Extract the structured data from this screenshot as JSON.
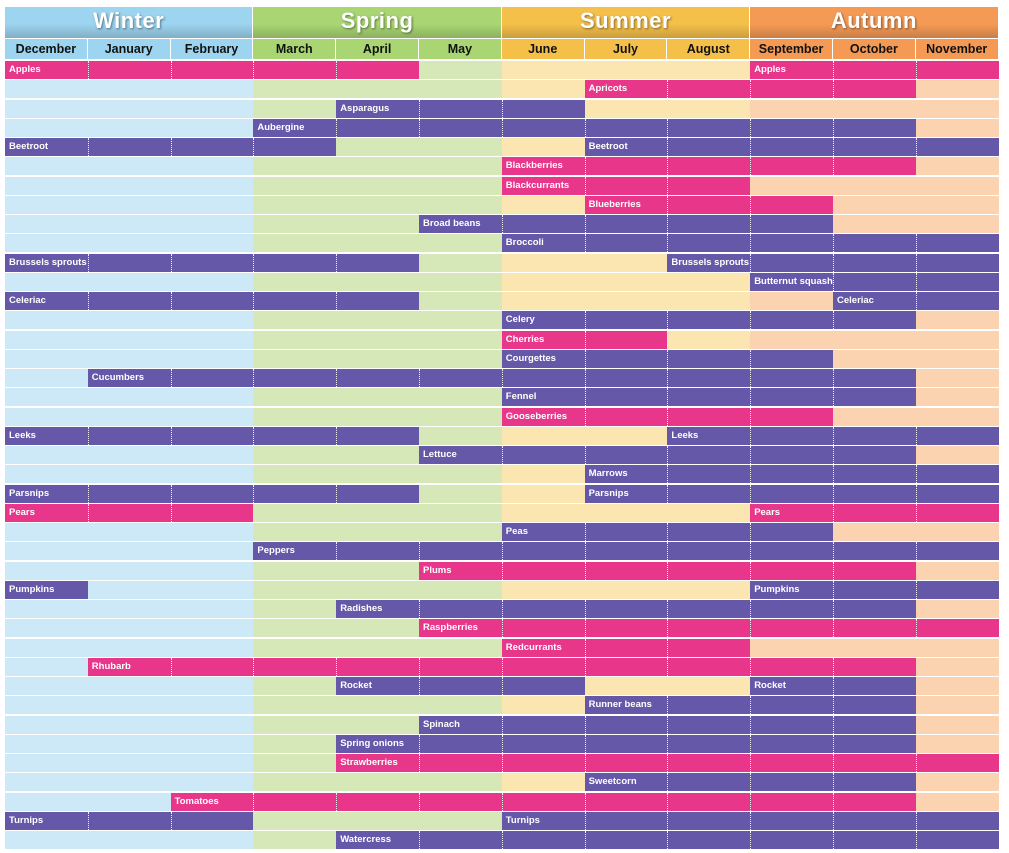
{
  "chart_data": {
    "type": "gantt",
    "seasons": [
      {
        "name": "Winter",
        "months": [
          0,
          2
        ]
      },
      {
        "name": "Spring",
        "months": [
          3,
          5
        ]
      },
      {
        "name": "Summer",
        "months": [
          6,
          8
        ]
      },
      {
        "name": "Autumn",
        "months": [
          9,
          11
        ]
      }
    ],
    "months": [
      "December",
      "January",
      "February",
      "March",
      "April",
      "May",
      "June",
      "July",
      "August",
      "September",
      "October",
      "November"
    ],
    "colors": {
      "fruit": "#e8368b",
      "vegetable": "#6558a8",
      "month_backgrounds": [
        "#cde8f7",
        "#cde8f7",
        "#cde8f7",
        "#d7e8b8",
        "#d7e8b8",
        "#d7e8b8",
        "#fbe5b0",
        "#fbe5b0",
        "#fbe5b0",
        "#fbd3b0",
        "#fbd3b0",
        "#fbd3b0"
      ],
      "season_headers": [
        "#9dd4f0",
        "#a9d673",
        "#f5c04a",
        "#f59a55"
      ]
    },
    "rows": [
      {
        "label": "Apples",
        "bars": [
          {
            "start": 0,
            "end": 4,
            "type": "fruit",
            "label": "Apples"
          },
          {
            "start": 9,
            "end": 11,
            "type": "fruit",
            "label": "Apples"
          }
        ]
      },
      {
        "label": "Apricots",
        "bars": [
          {
            "start": 7,
            "end": 10,
            "type": "fruit",
            "label": "Apricots"
          }
        ]
      },
      {
        "label": "Asparagus",
        "bars": [
          {
            "start": 4,
            "end": 6,
            "type": "vegetable",
            "label": "Asparagus"
          }
        ]
      },
      {
        "label": "Aubergine",
        "bars": [
          {
            "start": 3,
            "end": 10,
            "type": "vegetable",
            "label": "Aubergine"
          }
        ]
      },
      {
        "label": "Beetroot",
        "bars": [
          {
            "start": 0,
            "end": 3,
            "type": "vegetable",
            "label": "Beetroot"
          },
          {
            "start": 7,
            "end": 11,
            "type": "vegetable",
            "label": "Beetroot"
          }
        ]
      },
      {
        "label": "Blackberries",
        "bars": [
          {
            "start": 6,
            "end": 10,
            "type": "fruit",
            "label": "Blackberries"
          }
        ]
      },
      {
        "label": "Blackcurrants",
        "bars": [
          {
            "start": 6,
            "end": 8,
            "type": "fruit",
            "label": "Blackcurrants"
          }
        ]
      },
      {
        "label": "Blueberries",
        "bars": [
          {
            "start": 7,
            "end": 9,
            "type": "fruit",
            "label": "Blueberries"
          }
        ]
      },
      {
        "label": "Broad beans",
        "bars": [
          {
            "start": 5,
            "end": 9,
            "type": "vegetable",
            "label": "Broad beans"
          }
        ]
      },
      {
        "label": "Broccoli",
        "bars": [
          {
            "start": 6,
            "end": 11,
            "type": "vegetable",
            "label": "Broccoli"
          }
        ]
      },
      {
        "label": "Brussels sprouts",
        "bars": [
          {
            "start": 0,
            "end": 4,
            "type": "vegetable",
            "label": "Brussels sprouts"
          },
          {
            "start": 8,
            "end": 11,
            "type": "vegetable",
            "label": "Brussels sprouts"
          }
        ]
      },
      {
        "label": "Butternut squash",
        "bars": [
          {
            "start": 9,
            "end": 11,
            "type": "vegetable",
            "label": "Butternut squash"
          }
        ]
      },
      {
        "label": "Celeriac",
        "bars": [
          {
            "start": 0,
            "end": 4,
            "type": "vegetable",
            "label": "Celeriac"
          },
          {
            "start": 10,
            "end": 11,
            "type": "vegetable",
            "label": "Celeriac"
          }
        ]
      },
      {
        "label": "Celery",
        "bars": [
          {
            "start": 6,
            "end": 10,
            "type": "vegetable",
            "label": "Celery"
          }
        ]
      },
      {
        "label": "Cherries",
        "bars": [
          {
            "start": 6,
            "end": 7,
            "type": "fruit",
            "label": "Cherries"
          }
        ]
      },
      {
        "label": "Courgettes",
        "bars": [
          {
            "start": 6,
            "end": 9,
            "type": "vegetable",
            "label": "Courgettes"
          }
        ]
      },
      {
        "label": "Cucumbers",
        "bars": [
          {
            "start": 1,
            "end": 10,
            "type": "vegetable",
            "label": "Cucumbers"
          }
        ]
      },
      {
        "label": "Fennel",
        "bars": [
          {
            "start": 6,
            "end": 10,
            "type": "vegetable",
            "label": "Fennel"
          }
        ]
      },
      {
        "label": "Gooseberries",
        "bars": [
          {
            "start": 6,
            "end": 9,
            "type": "fruit",
            "label": "Gooseberries"
          }
        ]
      },
      {
        "label": "Leeks",
        "bars": [
          {
            "start": 0,
            "end": 4,
            "type": "vegetable",
            "label": "Leeks"
          },
          {
            "start": 8,
            "end": 11,
            "type": "vegetable",
            "label": "Leeks"
          }
        ]
      },
      {
        "label": "Lettuce",
        "bars": [
          {
            "start": 5,
            "end": 10,
            "type": "vegetable",
            "label": "Lettuce"
          }
        ]
      },
      {
        "label": "Marrows",
        "bars": [
          {
            "start": 7,
            "end": 11,
            "type": "vegetable",
            "label": "Marrows"
          }
        ]
      },
      {
        "label": "Parsnips",
        "bars": [
          {
            "start": 0,
            "end": 4,
            "type": "vegetable",
            "label": "Parsnips"
          },
          {
            "start": 7,
            "end": 11,
            "type": "vegetable",
            "label": "Parsnips"
          }
        ]
      },
      {
        "label": "Pears",
        "bars": [
          {
            "start": 0,
            "end": 2,
            "type": "fruit",
            "label": "Pears"
          },
          {
            "start": 9,
            "end": 11,
            "type": "fruit",
            "label": "Pears"
          }
        ]
      },
      {
        "label": "Peas",
        "bars": [
          {
            "start": 6,
            "end": 9,
            "type": "vegetable",
            "label": "Peas"
          }
        ]
      },
      {
        "label": "Peppers",
        "bars": [
          {
            "start": 3,
            "end": 11,
            "type": "vegetable",
            "label": "Peppers"
          }
        ]
      },
      {
        "label": "Plums",
        "bars": [
          {
            "start": 5,
            "end": 10,
            "type": "fruit",
            "label": "Plums"
          }
        ]
      },
      {
        "label": "Pumpkins",
        "bars": [
          {
            "start": 0,
            "end": 0,
            "type": "vegetable",
            "label": "Pumpkins"
          },
          {
            "start": 9,
            "end": 11,
            "type": "vegetable",
            "label": "Pumpkins"
          }
        ]
      },
      {
        "label": "Radishes",
        "bars": [
          {
            "start": 4,
            "end": 10,
            "type": "vegetable",
            "label": "Radishes"
          }
        ]
      },
      {
        "label": "Raspberries",
        "bars": [
          {
            "start": 5,
            "end": 11,
            "type": "fruit",
            "label": "Raspberries"
          }
        ]
      },
      {
        "label": "Redcurrants",
        "bars": [
          {
            "start": 6,
            "end": 8,
            "type": "fruit",
            "label": "Redcurrants"
          }
        ]
      },
      {
        "label": "Rhubarb",
        "bars": [
          {
            "start": 1,
            "end": 10,
            "type": "fruit",
            "label": "Rhubarb"
          }
        ]
      },
      {
        "label": "Rocket",
        "bars": [
          {
            "start": 4,
            "end": 6,
            "type": "vegetable",
            "label": "Rocket"
          },
          {
            "start": 9,
            "end": 10,
            "type": "vegetable",
            "label": "Rocket"
          }
        ]
      },
      {
        "label": "Runner beans",
        "bars": [
          {
            "start": 7,
            "end": 10,
            "type": "vegetable",
            "label": "Runner beans"
          }
        ]
      },
      {
        "label": "Spinach",
        "bars": [
          {
            "start": 5,
            "end": 10,
            "type": "vegetable",
            "label": "Spinach"
          }
        ]
      },
      {
        "label": "Spring onions",
        "bars": [
          {
            "start": 4,
            "end": 10,
            "type": "vegetable",
            "label": "Spring onions"
          }
        ]
      },
      {
        "label": "Strawberries",
        "bars": [
          {
            "start": 4,
            "end": 11,
            "type": "fruit",
            "label": "Strawberries"
          }
        ]
      },
      {
        "label": "Sweetcorn",
        "bars": [
          {
            "start": 7,
            "end": 10,
            "type": "vegetable",
            "label": "Sweetcorn"
          }
        ]
      },
      {
        "label": "Tomatoes",
        "bars": [
          {
            "start": 2,
            "end": 10,
            "type": "fruit",
            "label": "Tomatoes"
          }
        ]
      },
      {
        "label": "Turnips",
        "bars": [
          {
            "start": 0,
            "end": 2,
            "type": "vegetable",
            "label": "Turnips"
          },
          {
            "start": 6,
            "end": 11,
            "type": "vegetable",
            "label": "Turnips"
          }
        ]
      },
      {
        "label": "Watercress",
        "bars": [
          {
            "start": 4,
            "end": 11,
            "type": "vegetable",
            "label": "Watercress"
          }
        ]
      }
    ]
  }
}
